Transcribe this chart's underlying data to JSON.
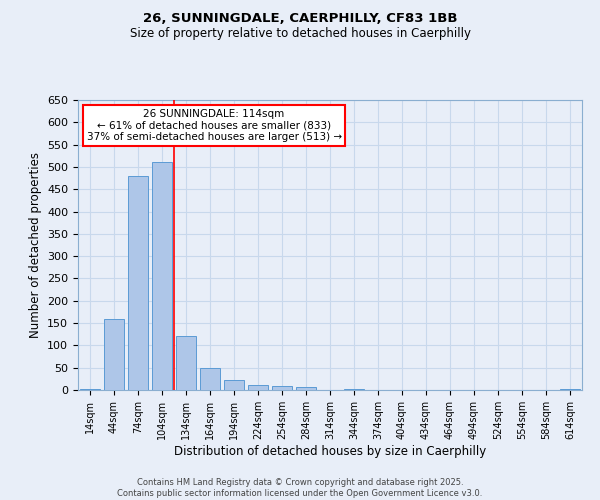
{
  "title_line1": "26, SUNNINGDALE, CAERPHILLY, CF83 1BB",
  "title_line2": "Size of property relative to detached houses in Caerphilly",
  "xlabel": "Distribution of detached houses by size in Caerphilly",
  "ylabel": "Number of detached properties",
  "categories": [
    "14sqm",
    "44sqm",
    "74sqm",
    "104sqm",
    "134sqm",
    "164sqm",
    "194sqm",
    "224sqm",
    "254sqm",
    "284sqm",
    "314sqm",
    "344sqm",
    "374sqm",
    "404sqm",
    "434sqm",
    "464sqm",
    "494sqm",
    "524sqm",
    "554sqm",
    "584sqm",
    "614sqm"
  ],
  "values": [
    3,
    160,
    480,
    510,
    122,
    50,
    23,
    12,
    10,
    6,
    0,
    3,
    0,
    0,
    0,
    0,
    0,
    0,
    0,
    0,
    2
  ],
  "bar_color": "#aec6e8",
  "bar_edge_color": "#5b9bd5",
  "red_line_index": 3,
  "annotation_text": "26 SUNNINGDALE: 114sqm\n← 61% of detached houses are smaller (833)\n37% of semi-detached houses are larger (513) →",
  "annotation_box_color": "white",
  "annotation_box_edge_color": "red",
  "vline_color": "red",
  "ylim": [
    0,
    650
  ],
  "yticks": [
    0,
    50,
    100,
    150,
    200,
    250,
    300,
    350,
    400,
    450,
    500,
    550,
    600,
    650
  ],
  "grid_color": "#c8d8ec",
  "background_color": "#e8eef8",
  "footer_line1": "Contains HM Land Registry data © Crown copyright and database right 2025.",
  "footer_line2": "Contains public sector information licensed under the Open Government Licence v3.0."
}
